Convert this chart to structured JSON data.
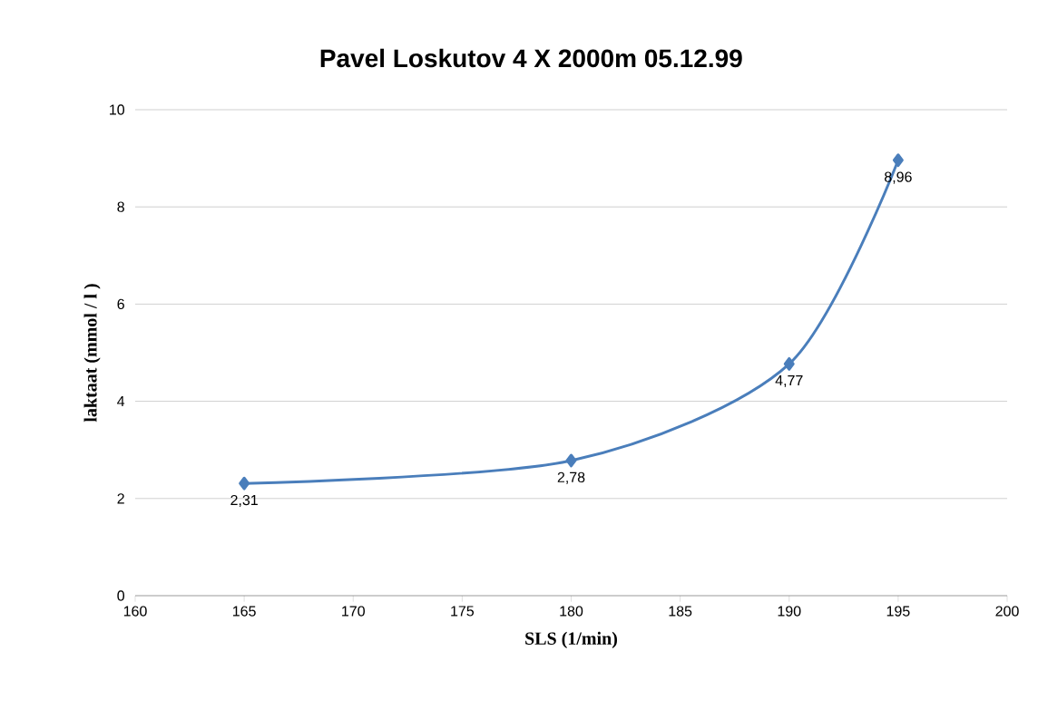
{
  "chart_data": {
    "type": "line",
    "title": "Pavel Loskutov 4 X 2000m 05.12.99",
    "xlabel": "SLS (1/min)",
    "ylabel": "laktaat (mmol / l )",
    "x": [
      165,
      180,
      190,
      195
    ],
    "series": [
      {
        "color": "#4a7ebb",
        "values": [
          2.31,
          2.78,
          4.77,
          8.96
        ],
        "value_labels": [
          "2,31",
          "2,78",
          "4,77",
          "8,96"
        ]
      }
    ],
    "xlim": [
      160,
      200
    ],
    "xticks": [
      160,
      165,
      170,
      175,
      180,
      185,
      190,
      195,
      200
    ],
    "ylim": [
      0,
      10
    ],
    "yticks": [
      0,
      2,
      4,
      6,
      8,
      10
    ],
    "grid": "y",
    "marker": "diamond",
    "line_style": "solid"
  }
}
